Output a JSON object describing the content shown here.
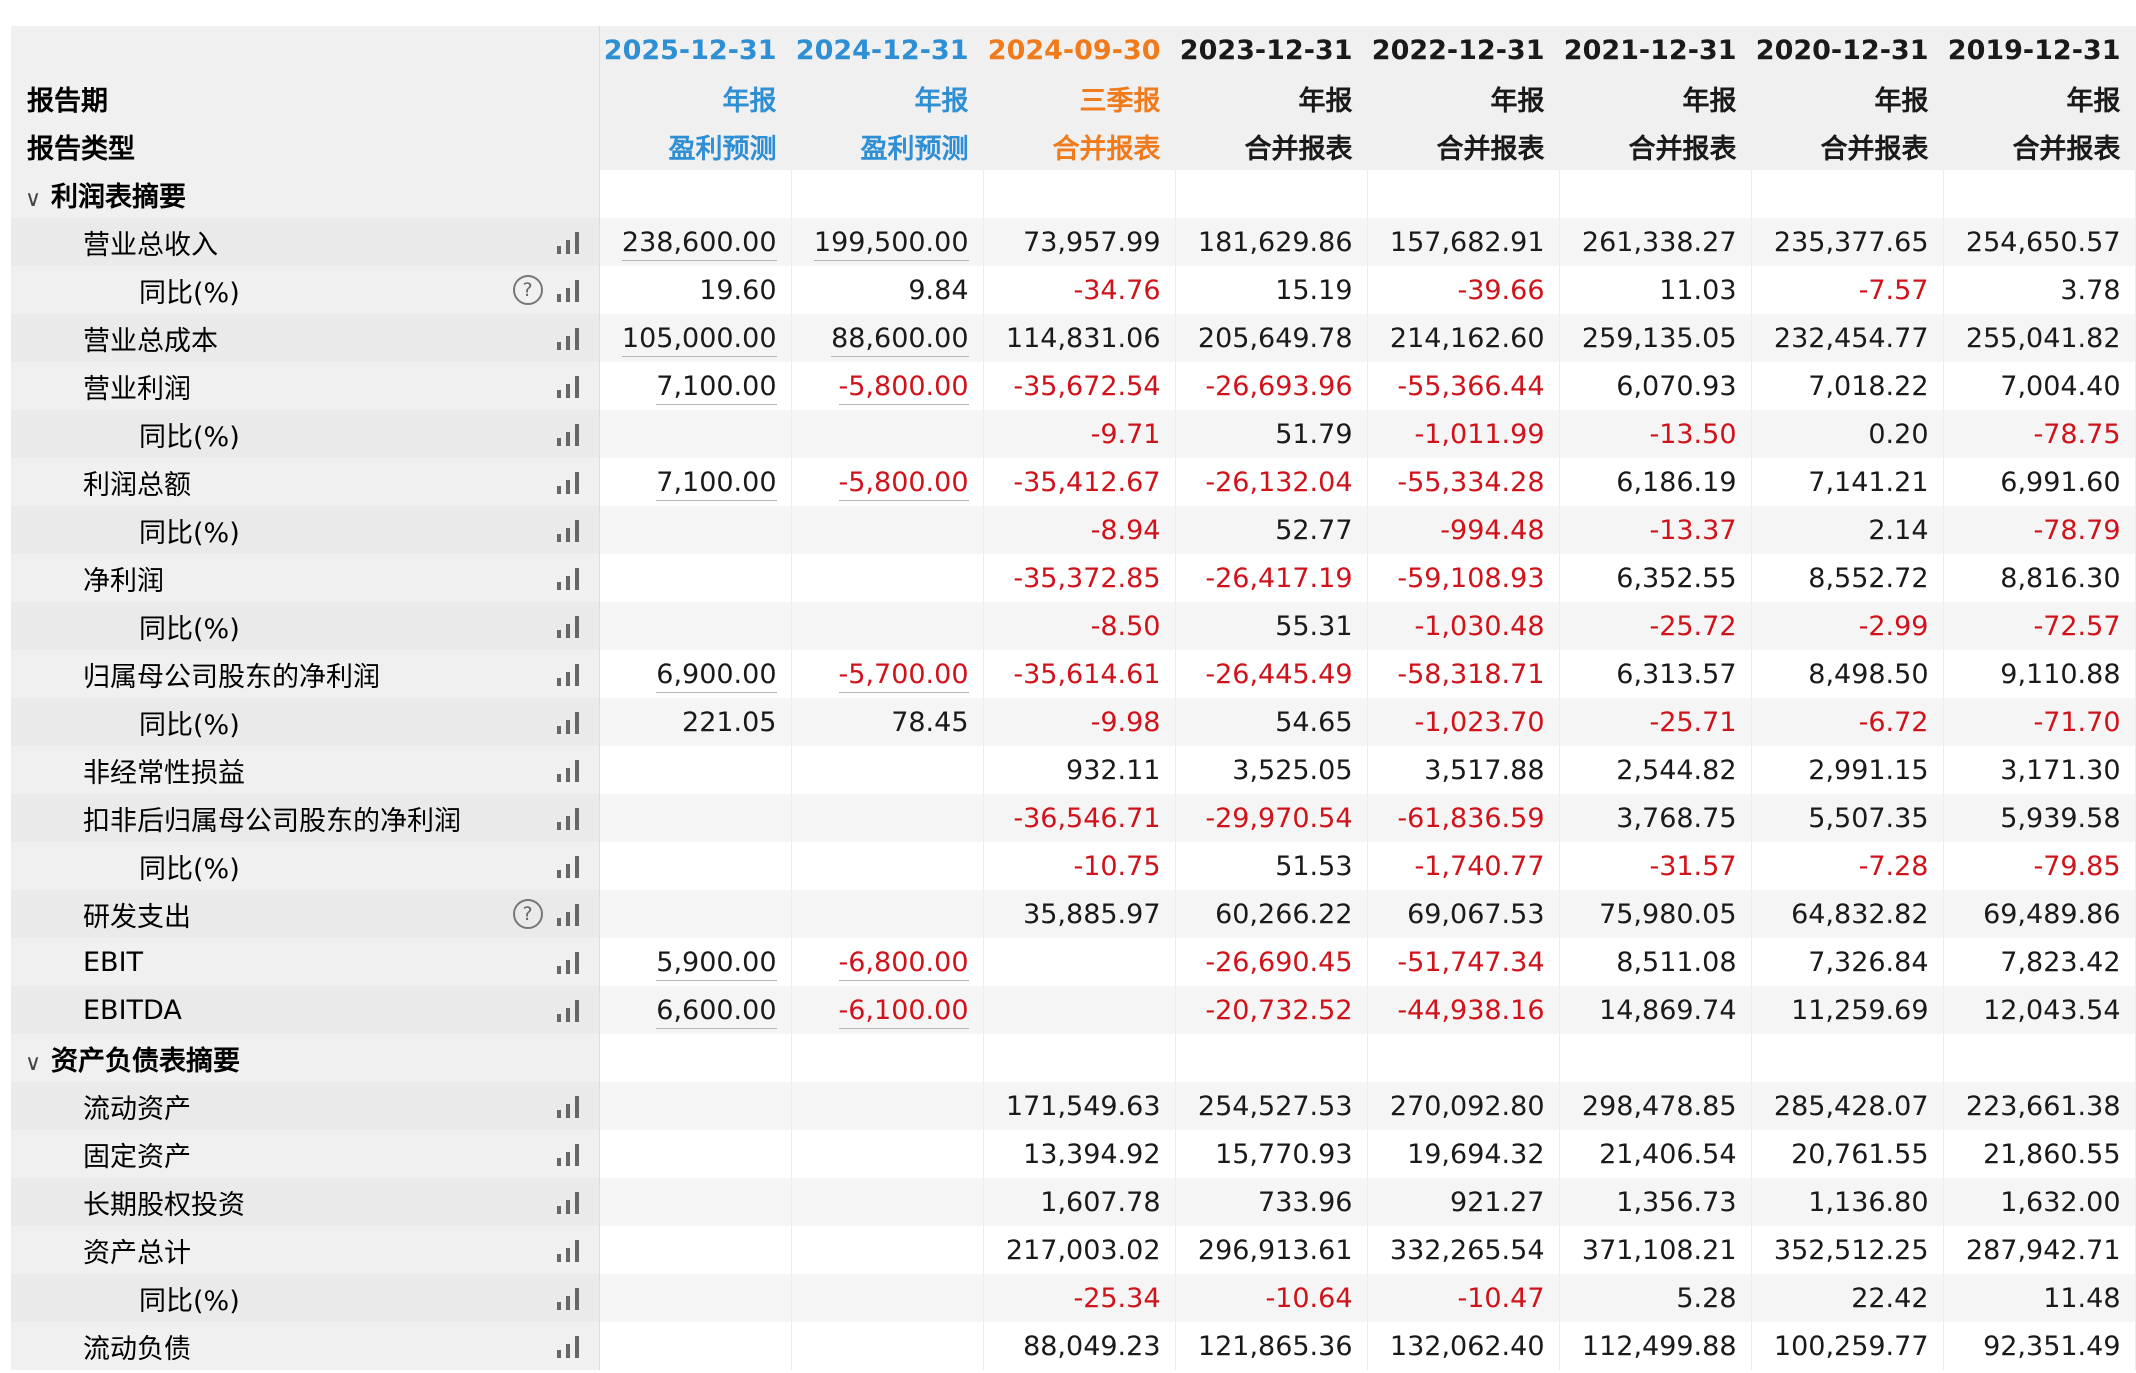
{
  "colors": {
    "forecast_blue": "#2f8fd4",
    "quarterly_orange": "#f07b1c",
    "negative_red": "#d0131b"
  },
  "header": {
    "dates": [
      "2025-12-31",
      "2024-12-31",
      "2024-09-30",
      "2023-12-31",
      "2022-12-31",
      "2021-12-31",
      "2020-12-31",
      "2019-12-31"
    ],
    "period_label": "报告期",
    "periods": [
      "年报",
      "年报",
      "三季报",
      "年报",
      "年报",
      "年报",
      "年报",
      "年报"
    ],
    "type_label": "报告类型",
    "types": [
      "盈利预测",
      "盈利预测",
      "合并报表",
      "合并报表",
      "合并报表",
      "合并报表",
      "合并报表",
      "合并报表"
    ]
  },
  "sections": [
    {
      "title": "利润表摘要",
      "rows": [
        {
          "label": "营业总收入",
          "indent": 1,
          "values": [
            "238,600.00",
            "199,500.00",
            "73,957.99",
            "181,629.86",
            "157,682.91",
            "261,338.27",
            "235,377.65",
            "254,650.57"
          ]
        },
        {
          "label": "同比(%)",
          "indent": 2,
          "help": true,
          "values": [
            "19.60",
            "9.84",
            "-34.76",
            "15.19",
            "-39.66",
            "11.03",
            "-7.57",
            "3.78"
          ]
        },
        {
          "label": "营业总成本",
          "indent": 1,
          "values": [
            "105,000.00",
            "88,600.00",
            "114,831.06",
            "205,649.78",
            "214,162.60",
            "259,135.05",
            "232,454.77",
            "255,041.82"
          ]
        },
        {
          "label": "营业利润",
          "indent": 1,
          "values": [
            "7,100.00",
            "-5,800.00",
            "-35,672.54",
            "-26,693.96",
            "-55,366.44",
            "6,070.93",
            "7,018.22",
            "7,004.40"
          ]
        },
        {
          "label": "同比(%)",
          "indent": 2,
          "values": [
            "",
            "",
            "-9.71",
            "51.79",
            "-1,011.99",
            "-13.50",
            "0.20",
            "-78.75"
          ]
        },
        {
          "label": "利润总额",
          "indent": 1,
          "values": [
            "7,100.00",
            "-5,800.00",
            "-35,412.67",
            "-26,132.04",
            "-55,334.28",
            "6,186.19",
            "7,141.21",
            "6,991.60"
          ]
        },
        {
          "label": "同比(%)",
          "indent": 2,
          "values": [
            "",
            "",
            "-8.94",
            "52.77",
            "-994.48",
            "-13.37",
            "2.14",
            "-78.79"
          ]
        },
        {
          "label": "净利润",
          "indent": 1,
          "values": [
            "",
            "",
            "-35,372.85",
            "-26,417.19",
            "-59,108.93",
            "6,352.55",
            "8,552.72",
            "8,816.30"
          ]
        },
        {
          "label": "同比(%)",
          "indent": 2,
          "values": [
            "",
            "",
            "-8.50",
            "55.31",
            "-1,030.48",
            "-25.72",
            "-2.99",
            "-72.57"
          ]
        },
        {
          "label": "归属母公司股东的净利润",
          "indent": 1,
          "values": [
            "6,900.00",
            "-5,700.00",
            "-35,614.61",
            "-26,445.49",
            "-58,318.71",
            "6,313.57",
            "8,498.50",
            "9,110.88"
          ]
        },
        {
          "label": "同比(%)",
          "indent": 2,
          "values": [
            "221.05",
            "78.45",
            "-9.98",
            "54.65",
            "-1,023.70",
            "-25.71",
            "-6.72",
            "-71.70"
          ]
        },
        {
          "label": "非经常性损益",
          "indent": 1,
          "values": [
            "",
            "",
            "932.11",
            "3,525.05",
            "3,517.88",
            "2,544.82",
            "2,991.15",
            "3,171.30"
          ]
        },
        {
          "label": "扣非后归属母公司股东的净利润",
          "indent": 1,
          "values": [
            "",
            "",
            "-36,546.71",
            "-29,970.54",
            "-61,836.59",
            "3,768.75",
            "5,507.35",
            "5,939.58"
          ]
        },
        {
          "label": "同比(%)",
          "indent": 2,
          "values": [
            "",
            "",
            "-10.75",
            "51.53",
            "-1,740.77",
            "-31.57",
            "-7.28",
            "-79.85"
          ]
        },
        {
          "label": "研发支出",
          "indent": 1,
          "help": true,
          "values": [
            "",
            "",
            "35,885.97",
            "60,266.22",
            "69,067.53",
            "75,980.05",
            "64,832.82",
            "69,489.86"
          ]
        },
        {
          "label": "EBIT",
          "indent": 1,
          "values": [
            "5,900.00",
            "-6,800.00",
            "",
            "-26,690.45",
            "-51,747.34",
            "8,511.08",
            "7,326.84",
            "7,823.42"
          ]
        },
        {
          "label": "EBITDA",
          "indent": 1,
          "values": [
            "6,600.00",
            "-6,100.00",
            "",
            "-20,732.52",
            "-44,938.16",
            "14,869.74",
            "11,259.69",
            "12,043.54"
          ]
        }
      ]
    },
    {
      "title": "资产负债表摘要",
      "rows": [
        {
          "label": "流动资产",
          "indent": 1,
          "values": [
            "",
            "",
            "171,549.63",
            "254,527.53",
            "270,092.80",
            "298,478.85",
            "285,428.07",
            "223,661.38"
          ]
        },
        {
          "label": "固定资产",
          "indent": 1,
          "values": [
            "",
            "",
            "13,394.92",
            "15,770.93",
            "19,694.32",
            "21,406.54",
            "20,761.55",
            "21,860.55"
          ]
        },
        {
          "label": "长期股权投资",
          "indent": 1,
          "values": [
            "",
            "",
            "1,607.78",
            "733.96",
            "921.27",
            "1,356.73",
            "1,136.80",
            "1,632.00"
          ]
        },
        {
          "label": "资产总计",
          "indent": 1,
          "values": [
            "",
            "",
            "217,003.02",
            "296,913.61",
            "332,265.54",
            "371,108.21",
            "352,512.25",
            "287,942.71"
          ]
        },
        {
          "label": "同比(%)",
          "indent": 2,
          "values": [
            "",
            "",
            "-25.34",
            "-10.64",
            "-10.47",
            "5.28",
            "22.42",
            "11.48"
          ]
        },
        {
          "label": "流动负债",
          "indent": 1,
          "values": [
            "",
            "",
            "88,049.23",
            "121,865.36",
            "132,062.40",
            "112,499.88",
            "100,259.77",
            "92,351.49"
          ]
        }
      ]
    }
  ]
}
